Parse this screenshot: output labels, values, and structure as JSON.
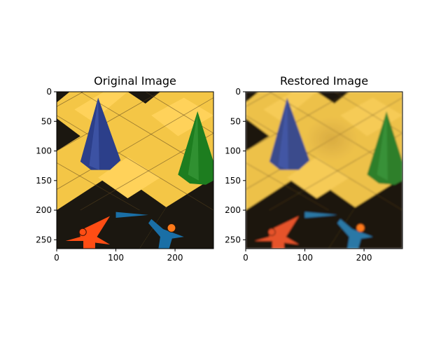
{
  "chart_data": [
    {
      "type": "image",
      "title": "Original Image",
      "x_ticks": [
        "0",
        "100",
        "200"
      ],
      "y_ticks": [
        "0",
        "50",
        "100",
        "150",
        "200",
        "250"
      ],
      "xlim": [
        0,
        265
      ],
      "ylim": [
        265,
        0
      ],
      "palette": {
        "board": "#f4c646",
        "square": "#ffd25a",
        "dark": "#1b1710",
        "cone_left": "#2c3f8a",
        "cone_right": "#1d7d1f",
        "figure_left": "#ff4d14",
        "figure_right": "#1a6fa6"
      }
    },
    {
      "type": "image",
      "title": "Restored Image",
      "x_ticks": [
        "0",
        "100",
        "200"
      ],
      "y_ticks": [
        "0",
        "50",
        "100",
        "150",
        "200",
        "250"
      ],
      "xlim": [
        0,
        265
      ],
      "ylim": [
        265,
        0
      ],
      "palette": {
        "board": "#edc14a",
        "square": "#f6cb56",
        "dark": "#1f190f",
        "cone_left": "#3a4b8c",
        "cone_right": "#2e7f2a",
        "figure_left": "#e6532a",
        "figure_right": "#2a78a6"
      }
    }
  ]
}
